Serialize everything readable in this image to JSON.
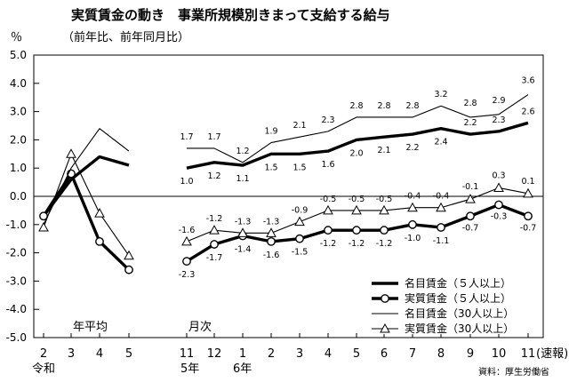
{
  "chart_data": {
    "type": "line",
    "title": "実質賃金の動き　事業所規模別きまって支給する給与",
    "subtitle": "（前年比、前年同月比）",
    "ylabel": "％",
    "ylim": [
      -5,
      5
    ],
    "yticks": [
      "5.0",
      "4.0",
      "3.0",
      "2.0",
      "1.0",
      "0.0",
      "-1.0",
      "-2.0",
      "-3.0",
      "-4.0",
      "-5.0"
    ],
    "grid": false,
    "legend_position": "bottom-right",
    "x_labels": [
      "2",
      "3",
      "4",
      "5",
      "11",
      "12",
      "1",
      "2",
      "3",
      "4",
      "5",
      "6",
      "7",
      "8",
      "9",
      "10",
      "11"
    ],
    "x_suffix": "(速報)",
    "x_sublabels": {
      "reiwa": "令和",
      "y5": "5年",
      "y6": "6年"
    },
    "section_labels": {
      "annual": "年平均",
      "monthly": "月次"
    },
    "source": "資料：厚生労働省",
    "series": [
      {
        "name": "名目賃金（５人以上）",
        "style": "thick",
        "annual": [
          -0.7,
          0.6,
          1.4,
          1.1
        ],
        "monthly": [
          1.0,
          1.2,
          1.1,
          1.5,
          1.5,
          1.6,
          2.0,
          2.1,
          2.2,
          2.4,
          2.2,
          2.3,
          2.6
        ],
        "labels": [
          "1.0",
          "1.2",
          "1.1",
          "1.5",
          "1.5",
          "1.6",
          "2.0",
          "2.1",
          "2.2",
          "2.4",
          "2.2",
          "2.3",
          "2.6"
        ]
      },
      {
        "name": "実質賃金（５人以上）",
        "style": "thick-circle",
        "annual": [
          -0.7,
          0.8,
          -1.6,
          -2.6
        ],
        "monthly": [
          -2.3,
          -1.7,
          -1.4,
          -1.6,
          -1.5,
          -1.2,
          -1.2,
          -1.2,
          -1.0,
          -1.1,
          -0.7,
          -0.3,
          -0.7
        ],
        "labels": [
          "-2.3",
          "-1.7",
          "-1.4",
          "-1.6",
          "-1.5",
          "-1.2",
          "-1.2",
          "-1.2",
          "-1.0",
          "-1.1",
          "-0.7",
          "-0.3",
          "-0.7"
        ]
      },
      {
        "name": "名目賃金（30人以上）",
        "style": "thin",
        "annual": [
          -1.0,
          1.0,
          2.4,
          1.6
        ],
        "monthly": [
          1.7,
          1.7,
          1.2,
          1.9,
          2.1,
          2.3,
          2.8,
          2.8,
          2.8,
          3.2,
          2.8,
          2.9,
          3.6
        ],
        "labels": [
          "1.7",
          "1.7",
          "1.2",
          "1.9",
          "2.1",
          "2.3",
          "2.8",
          "2.8",
          "2.8",
          "3.2",
          "2.8",
          "2.9",
          "3.6"
        ]
      },
      {
        "name": "実質賃金（30人以上）",
        "style": "thin-triangle",
        "annual": [
          -1.1,
          1.5,
          -0.6,
          -2.1
        ],
        "monthly": [
          -1.6,
          -1.2,
          -1.3,
          -1.3,
          -0.9,
          -0.5,
          -0.5,
          -0.5,
          -0.4,
          -0.4,
          -0.1,
          0.3,
          0.1
        ],
        "labels": [
          "-1.6",
          "-1.2",
          "-1.3",
          "-1.3",
          "-0.9",
          "-0.5",
          "-0.5",
          "-0.5",
          "-0.4",
          "-0.4",
          "-0.1",
          "0.3",
          "0.1"
        ]
      }
    ]
  }
}
